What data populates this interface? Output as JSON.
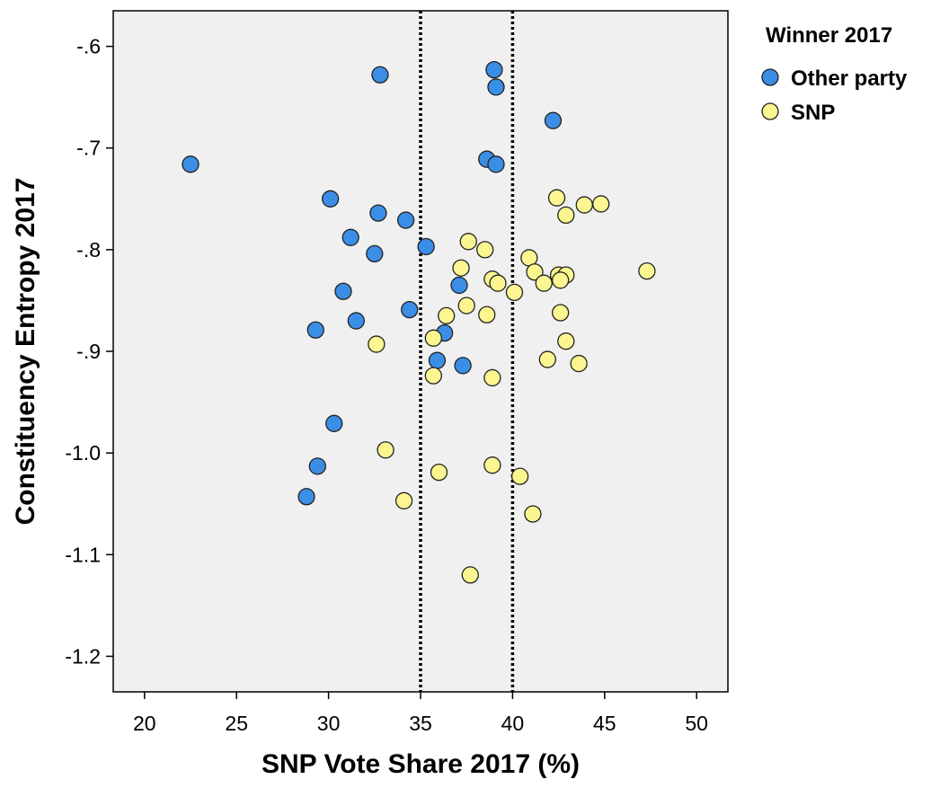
{
  "chart_data": {
    "type": "scatter",
    "xlabel": "SNP Vote Share 2017 (%)",
    "ylabel": "Constituency Entropy 2017",
    "xlim": [
      18.3,
      51.7
    ],
    "ylim": [
      -1.235,
      -0.565
    ],
    "x_ticks": [
      20,
      25,
      30,
      35,
      40,
      45,
      50
    ],
    "y_ticks": [
      -0.6,
      -0.7,
      -0.8,
      -0.9,
      -1.0,
      -1.1,
      -1.2
    ],
    "x_tick_labels": [
      "20",
      "25",
      "30",
      "35",
      "40",
      "45",
      "50"
    ],
    "y_tick_labels": [
      "-.6",
      "-.7",
      "-.8",
      "-.9",
      "-1.0",
      "-1.1",
      "-1.2"
    ],
    "reference_lines_x": [
      35,
      40
    ],
    "grid": false,
    "legend": {
      "title": "Winner 2017",
      "placement": "right"
    },
    "colors": {
      "plot_background": "#f0f0f0",
      "other_party": "#3b8ee6",
      "snp": "#fbf68f",
      "marker_edge": "#222222"
    },
    "series": [
      {
        "name": "Other party",
        "color": "#3b8ee6",
        "points": [
          [
            22.5,
            -0.716
          ],
          [
            32.8,
            -0.628
          ],
          [
            39.0,
            -0.623
          ],
          [
            39.1,
            -0.64
          ],
          [
            42.2,
            -0.673
          ],
          [
            38.6,
            -0.711
          ],
          [
            39.1,
            -0.716
          ],
          [
            30.1,
            -0.75
          ],
          [
            32.7,
            -0.764
          ],
          [
            34.2,
            -0.771
          ],
          [
            31.2,
            -0.788
          ],
          [
            35.3,
            -0.797
          ],
          [
            32.5,
            -0.804
          ],
          [
            30.8,
            -0.841
          ],
          [
            37.1,
            -0.835
          ],
          [
            34.4,
            -0.859
          ],
          [
            31.5,
            -0.87
          ],
          [
            29.3,
            -0.879
          ],
          [
            36.3,
            -0.882
          ],
          [
            35.9,
            -0.909
          ],
          [
            37.3,
            -0.914
          ],
          [
            30.3,
            -0.971
          ],
          [
            29.4,
            -1.013
          ],
          [
            28.8,
            -1.043
          ]
        ]
      },
      {
        "name": "SNP",
        "color": "#fbf68f",
        "points": [
          [
            42.4,
            -0.749
          ],
          [
            43.9,
            -0.756
          ],
          [
            44.8,
            -0.755
          ],
          [
            42.9,
            -0.766
          ],
          [
            37.6,
            -0.792
          ],
          [
            38.5,
            -0.8
          ],
          [
            40.9,
            -0.808
          ],
          [
            37.2,
            -0.818
          ],
          [
            41.2,
            -0.822
          ],
          [
            42.5,
            -0.825
          ],
          [
            42.9,
            -0.825
          ],
          [
            47.3,
            -0.821
          ],
          [
            38.9,
            -0.829
          ],
          [
            39.2,
            -0.833
          ],
          [
            41.7,
            -0.833
          ],
          [
            42.6,
            -0.83
          ],
          [
            40.1,
            -0.842
          ],
          [
            37.5,
            -0.855
          ],
          [
            36.4,
            -0.865
          ],
          [
            38.6,
            -0.864
          ],
          [
            42.6,
            -0.862
          ],
          [
            35.7,
            -0.887
          ],
          [
            32.6,
            -0.893
          ],
          [
            42.9,
            -0.89
          ],
          [
            41.9,
            -0.908
          ],
          [
            43.6,
            -0.912
          ],
          [
            35.7,
            -0.924
          ],
          [
            38.9,
            -0.926
          ],
          [
            33.1,
            -0.997
          ],
          [
            38.9,
            -1.012
          ],
          [
            36.0,
            -1.019
          ],
          [
            40.4,
            -1.023
          ],
          [
            34.1,
            -1.047
          ],
          [
            41.1,
            -1.06
          ],
          [
            37.7,
            -1.12
          ]
        ]
      }
    ]
  }
}
